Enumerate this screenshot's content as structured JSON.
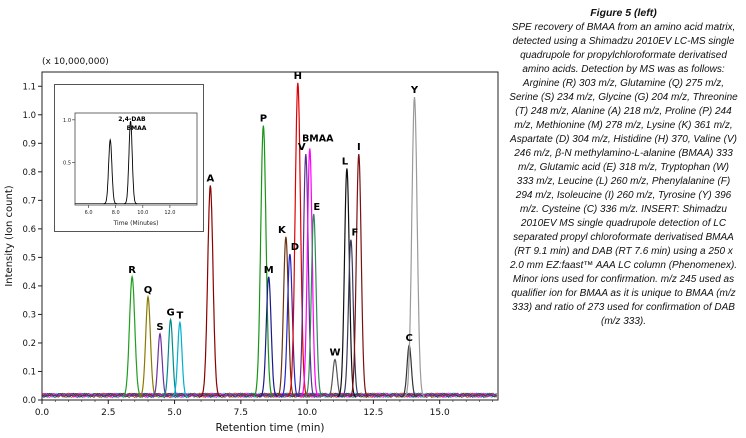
{
  "caption": {
    "title": "Figure 5 (left)",
    "body": "SPE recovery of BMAA from an amino acid matrix, detected using a Shimadzu 2010EV LC-MS single quadrupole for propylchloroformate derivatised amino acids. Detection by MS was as follows: Arginine (R) 303 m/z, Glutamine (Q) 275 m/z, Serine (S) 234 m/z, Glycine (G) 204 m/z, Threonine (T) 248 m/z, Alanine (A) 218 m/z, Proline (P) 244 m/z, Methionine (M) 278 m/z, Lysine (K) 361 m/z, Aspartate (D) 304 m/z, Histidine (H) 370, Valine (V) 246 m/z, β-N methylamino-L-alanine (BMAA) 333 m/z, Glutamic acid (E) 318 m/z, Tryptophan (W) 333 m/z, Leucine (L) 260 m/z, Phenylalanine (F) 294 m/z, Isoleucine (I) 260 m/z, Tyrosine (Y) 396 m/z. Cysteine (C) 336 m/z. INSERT: Shimadzu 2010EV MS single quadrupole detection of LC separated propyl chloroformate derivatised BMAA (RT 9.1 min) and DAB (RT 7.6 min) using a 250 x 2.0 mm EZ:faast™ AAA LC column (Phenomenex). Minor ions used for confirmation. m/z 245 used as qualifier ion for BMAA as it is unique to BMAA (m/z 333) and ratio of 273 used for confirmation of DAB (m/z 333)."
  },
  "chart_data": {
    "type": "line",
    "title": "",
    "xlabel": "Retention time (min)",
    "ylabel": "Intensity (Ion count)",
    "y_multiplier": "(x 10,000,000)",
    "xlim": [
      0,
      17.2
    ],
    "ylim": [
      0,
      1.15
    ],
    "x_ticks": [
      0.0,
      2.5,
      5.0,
      7.5,
      10.0,
      12.5,
      15.0
    ],
    "y_ticks": [
      0.0,
      0.1,
      0.2,
      0.3,
      0.4,
      0.5,
      0.6,
      0.7,
      0.8,
      0.9,
      1.0,
      1.1
    ],
    "grid": false,
    "legend": "none",
    "peaks": [
      {
        "label": "R",
        "rt": 3.4,
        "height": 0.42,
        "color": "#1f9e1f",
        "sigma": 0.1
      },
      {
        "label": "Q",
        "rt": 4.0,
        "height": 0.35,
        "color": "#8a7a00",
        "sigma": 0.09
      },
      {
        "label": "S",
        "rt": 4.45,
        "height": 0.22,
        "color": "#7030a0",
        "sigma": 0.08
      },
      {
        "label": "G",
        "rt": 4.85,
        "height": 0.27,
        "color": "#008b8b",
        "sigma": 0.08
      },
      {
        "label": "T",
        "rt": 5.2,
        "height": 0.26,
        "color": "#00b0d0",
        "sigma": 0.08
      },
      {
        "label": "A",
        "rt": 6.35,
        "height": 0.74,
        "color": "#8b0000",
        "sigma": 0.1
      },
      {
        "label": "P",
        "rt": 8.35,
        "height": 0.95,
        "color": "#169616",
        "sigma": 0.1
      },
      {
        "label": "M",
        "rt": 8.55,
        "height": 0.42,
        "color": "#1a1a8c",
        "sigma": 0.09
      },
      {
        "label": "K",
        "rt": 9.2,
        "height": 0.56,
        "color": "#6b3310",
        "sigma": 0.09,
        "label_dx": -4
      },
      {
        "label": "D",
        "rt": 9.35,
        "height": 0.5,
        "color": "#2424c8",
        "sigma": 0.09,
        "label_dx": 5
      },
      {
        "label": "H",
        "rt": 9.65,
        "height": 1.1,
        "color": "#e00000",
        "sigma": 0.1
      },
      {
        "label": "V",
        "rt": 9.95,
        "height": 0.85,
        "color": "#5b2d8e",
        "sigma": 0.09,
        "label_dx": -4
      },
      {
        "label": "BMAA",
        "rt": 10.1,
        "height": 0.87,
        "color": "#ff00ff",
        "sigma": 0.09,
        "label_dx": 8,
        "label_dy": -3
      },
      {
        "label": "E",
        "rt": 10.25,
        "height": 0.64,
        "color": "#2e8b57",
        "sigma": 0.09,
        "label_dx": 3
      },
      {
        "label": "W",
        "rt": 11.05,
        "height": 0.13,
        "color": "#555555",
        "sigma": 0.08
      },
      {
        "label": "L",
        "rt": 11.5,
        "height": 0.8,
        "color": "#101010",
        "sigma": 0.09,
        "label_dx": -2
      },
      {
        "label": "F",
        "rt": 11.65,
        "height": 0.55,
        "color": "#3a3a5c",
        "sigma": 0.09,
        "label_dx": 4
      },
      {
        "label": "I",
        "rt": 11.95,
        "height": 0.85,
        "color": "#7a1010",
        "sigma": 0.09
      },
      {
        "label": "C",
        "rt": 13.85,
        "height": 0.18,
        "color": "#333333",
        "sigma": 0.08
      },
      {
        "label": "Y",
        "rt": 14.05,
        "height": 1.05,
        "color": "#9a9a9a",
        "sigma": 0.1
      }
    ],
    "noise_colors": [
      "#1f9e1f",
      "#8a7a00",
      "#7030a0",
      "#008b8b",
      "#00b0d0",
      "#8b0000",
      "#e00000",
      "#2424c8",
      "#ff00ff",
      "#333333"
    ],
    "inset": {
      "xlabel": "Time (Minutes)",
      "xlim": [
        5,
        14
      ],
      "x_ticks": [
        6.0,
        8.0,
        10.0,
        12.0
      ],
      "y_ticks": [
        0.5,
        1.0
      ],
      "peaks": [
        {
          "label": "2,4-DAB",
          "rt": 7.6,
          "height": 0.75,
          "color": "#000000",
          "sigma": 0.12
        },
        {
          "label": "BMAA",
          "rt": 9.1,
          "height": 0.97,
          "color": "#000000",
          "sigma": 0.12
        }
      ]
    }
  }
}
